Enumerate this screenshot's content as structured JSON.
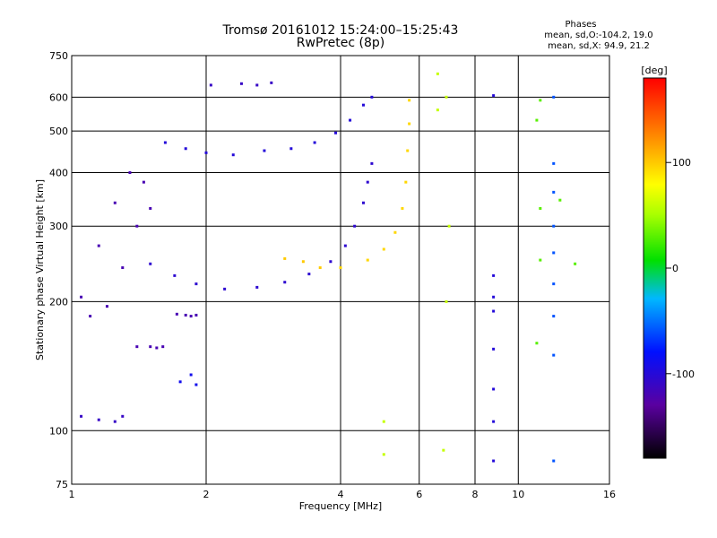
{
  "chart_data": {
    "type": "scatter",
    "title": "Tromsø 20161012 15:24:00–15:25:43",
    "subtitle": "RwPretec (8p)",
    "stats": {
      "title": "Phases",
      "line1": "mean, sd,O:-104.2, 19.0",
      "line2": "mean, sd,X:  94.9, 21.2"
    },
    "xlabel": "Frequency [MHz]",
    "ylabel": "Stationary phase Virtual Height [km]",
    "x_scale": "log",
    "y_scale": "log",
    "xlim": [
      1,
      16
    ],
    "ylim": [
      75,
      750
    ],
    "x_ticks": [
      1,
      2,
      4,
      6,
      8,
      10,
      16
    ],
    "y_ticks": [
      75,
      100,
      200,
      300,
      400,
      500,
      600,
      750
    ],
    "grid": true,
    "colorbar": {
      "label": "[deg]",
      "range": [
        -180,
        180
      ],
      "ticks": [
        100,
        0,
        -100
      ]
    },
    "traces": [
      {
        "phase": -100,
        "points": [
          [
            1.62,
            470
          ],
          [
            1.8,
            455
          ],
          [
            2.0,
            445
          ],
          [
            2.3,
            440
          ],
          [
            2.7,
            450
          ],
          [
            3.1,
            455
          ],
          [
            3.5,
            470
          ],
          [
            3.9,
            495
          ],
          [
            4.2,
            530
          ],
          [
            4.5,
            575
          ],
          [
            4.7,
            600
          ]
        ]
      },
      {
        "phase": -105,
        "points": [
          [
            1.5,
            245
          ],
          [
            1.7,
            230
          ],
          [
            1.9,
            220
          ],
          [
            2.2,
            214
          ],
          [
            2.6,
            216
          ],
          [
            3.0,
            222
          ],
          [
            3.4,
            232
          ],
          [
            3.8,
            248
          ],
          [
            4.1,
            270
          ],
          [
            4.3,
            300
          ],
          [
            4.5,
            340
          ],
          [
            4.6,
            380
          ],
          [
            4.7,
            420
          ]
        ]
      },
      {
        "phase": 95,
        "points": [
          [
            4.0,
            240
          ],
          [
            4.6,
            250
          ],
          [
            5.0,
            265
          ],
          [
            5.3,
            290
          ],
          [
            5.5,
            330
          ],
          [
            5.6,
            380
          ],
          [
            5.65,
            450
          ],
          [
            5.7,
            520
          ],
          [
            5.7,
            590
          ]
        ]
      },
      {
        "phase": 100,
        "points": [
          [
            3.0,
            252
          ],
          [
            3.3,
            248
          ],
          [
            3.6,
            240
          ]
        ]
      },
      {
        "phase": -120,
        "points": [
          [
            1.05,
            205
          ],
          [
            1.1,
            185
          ],
          [
            1.2,
            195
          ],
          [
            1.3,
            240
          ],
          [
            1.4,
            300
          ],
          [
            1.5,
            330
          ],
          [
            1.45,
            380
          ],
          [
            1.35,
            400
          ],
          [
            1.25,
            340
          ],
          [
            1.15,
            270
          ]
        ]
      },
      {
        "phase": -110,
        "points": [
          [
            1.05,
            108
          ],
          [
            1.15,
            106
          ],
          [
            1.25,
            105
          ],
          [
            1.3,
            108
          ]
        ]
      },
      {
        "phase": -120,
        "points": [
          [
            1.4,
            157
          ],
          [
            1.5,
            157
          ],
          [
            1.55,
            156
          ],
          [
            1.6,
            157
          ]
        ]
      },
      {
        "phase": -120,
        "points": [
          [
            1.72,
            187
          ],
          [
            1.8,
            186
          ],
          [
            1.85,
            185
          ],
          [
            1.9,
            186
          ]
        ]
      },
      {
        "phase": -90,
        "points": [
          [
            1.75,
            130
          ],
          [
            1.85,
            135
          ],
          [
            1.9,
            128
          ]
        ]
      },
      {
        "phase": -110,
        "points": [
          [
            2.05,
            640
          ],
          [
            2.4,
            645
          ],
          [
            2.6,
            640
          ],
          [
            2.8,
            648
          ]
        ]
      },
      {
        "phase": -100,
        "points": [
          [
            8.8,
            605
          ],
          [
            8.8,
            230
          ],
          [
            8.8,
            205
          ],
          [
            8.8,
            190
          ],
          [
            8.8,
            155
          ],
          [
            8.8,
            125
          ],
          [
            8.8,
            105
          ],
          [
            8.8,
            85
          ]
        ]
      },
      {
        "phase": -60,
        "points": [
          [
            12.0,
            600
          ],
          [
            12.0,
            420
          ],
          [
            12.0,
            360
          ],
          [
            12.0,
            300
          ],
          [
            12.0,
            260
          ],
          [
            12.0,
            220
          ],
          [
            12.0,
            185
          ],
          [
            12.0,
            150
          ],
          [
            12.0,
            85
          ]
        ]
      },
      {
        "phase": 60,
        "points": [
          [
            6.6,
            680
          ],
          [
            6.6,
            560
          ],
          [
            6.9,
            600
          ],
          [
            7.0,
            300
          ],
          [
            6.9,
            200
          ],
          [
            6.8,
            90
          ],
          [
            5.0,
            105
          ],
          [
            5.0,
            88
          ]
        ]
      },
      {
        "phase": 30,
        "points": [
          [
            11.2,
            590
          ],
          [
            11.0,
            530
          ],
          [
            11.2,
            330
          ],
          [
            11.2,
            250
          ],
          [
            12.4,
            345
          ],
          [
            13.4,
            245
          ],
          [
            11.0,
            160
          ]
        ]
      }
    ]
  }
}
